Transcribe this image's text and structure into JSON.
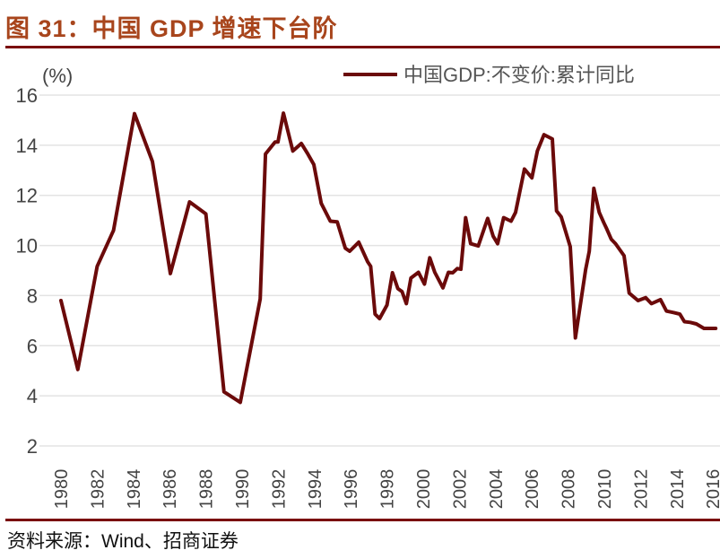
{
  "title": "图 31：中国 GDP 增速下台阶",
  "source": "资料来源：Wind、招商证券",
  "colors": {
    "line": "#6b0a0a",
    "title": "#a8451c",
    "rule": "#7a0a0a",
    "grid": "#e3e3e3"
  },
  "chart_data": {
    "type": "line",
    "title": "",
    "ylabel": "(%)",
    "xlabel": "",
    "ylim": [
      2,
      16
    ],
    "yticks": [
      2,
      4,
      6,
      8,
      10,
      12,
      14,
      16
    ],
    "xlim": [
      1980,
      2016.15
    ],
    "xticks": [
      "1980",
      "1982",
      "1984",
      "1986",
      "1988",
      "1990",
      "1992",
      "1994",
      "1996",
      "1998",
      "2000",
      "2002",
      "2004",
      "2006",
      "2008",
      "2010",
      "2012",
      "2014",
      "2016"
    ],
    "grid": true,
    "legend_position": "top-right",
    "series": [
      {
        "name": "中国GDP:不变价:累计同比",
        "x": [
          1980.0,
          1980.93,
          1982.0,
          1982.9,
          1984.06,
          1985.05,
          1986.04,
          1987.1,
          1988.0,
          1989.0,
          1989.9,
          1991.0,
          1991.29,
          1991.82,
          1991.98,
          1992.28,
          1992.8,
          1993.27,
          1993.63,
          1993.96,
          1994.37,
          1994.87,
          1995.25,
          1995.7,
          1995.94,
          1996.44,
          1996.93,
          1997.1,
          1997.34,
          1997.59,
          1998.0,
          1998.3,
          1998.6,
          1998.83,
          1999.07,
          1999.32,
          1999.74,
          2000.07,
          2000.36,
          2000.64,
          2001.09,
          2001.39,
          2001.63,
          2001.88,
          2002.08,
          2002.34,
          2002.62,
          2003.04,
          2003.56,
          2003.86,
          2004.11,
          2004.44,
          2004.85,
          2005.1,
          2005.59,
          2006.0,
          2006.3,
          2006.67,
          2007.13,
          2007.36,
          2007.62,
          2008.12,
          2008.4,
          2008.97,
          2009.17,
          2009.42,
          2009.72,
          2009.97,
          2010.13,
          2010.38,
          2010.62,
          2011.09,
          2011.37,
          2011.86,
          2012.28,
          2012.6,
          2013.1,
          2013.43,
          2013.84,
          2014.17,
          2014.42,
          2014.75,
          2015.08,
          2015.5,
          2016.15
        ],
        "y": [
          7.8,
          5.05,
          9.17,
          10.6,
          15.26,
          13.35,
          8.88,
          11.74,
          11.26,
          4.16,
          3.74,
          7.87,
          13.65,
          14.13,
          14.13,
          15.28,
          13.77,
          14.07,
          13.65,
          13.23,
          11.68,
          10.97,
          10.94,
          9.89,
          9.77,
          10.13,
          9.35,
          9.17,
          7.26,
          7.08,
          7.62,
          8.91,
          8.28,
          8.16,
          7.68,
          8.7,
          8.93,
          8.46,
          9.51,
          8.93,
          8.31,
          8.93,
          8.91,
          9.08,
          9.05,
          11.11,
          10.07,
          9.98,
          11.08,
          10.37,
          10.07,
          11.11,
          10.97,
          11.32,
          13.05,
          12.7,
          13.77,
          14.42,
          14.25,
          11.38,
          11.14,
          9.95,
          6.31,
          9.05,
          9.77,
          12.28,
          11.32,
          10.91,
          10.67,
          10.25,
          10.07,
          9.59,
          8.1,
          7.8,
          7.92,
          7.68,
          7.84,
          7.38,
          7.32,
          7.26,
          6.96,
          6.93,
          6.87,
          6.69,
          6.69
        ]
      }
    ]
  }
}
